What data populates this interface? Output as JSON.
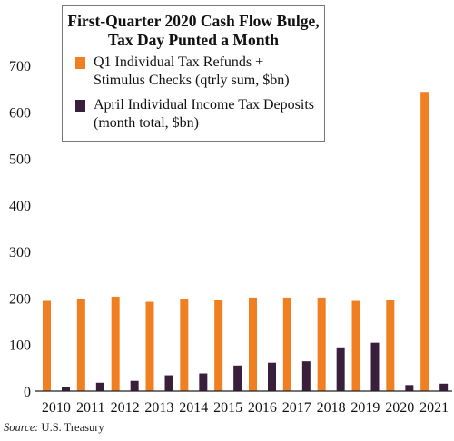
{
  "chart_data": {
    "type": "bar",
    "title_lines": [
      "First-Quarter 2020 Cash Flow Bulge,",
      "Tax Day Punted a Month"
    ],
    "categories": [
      "2010",
      "2011",
      "2012",
      "2013",
      "2014",
      "2015",
      "2016",
      "2017",
      "2018",
      "2019",
      "2020",
      "2021"
    ],
    "series": [
      {
        "name_lines": [
          "Q1 Individual Tax Refunds +",
          "Stimulus Checks (qtrly sum, $bn)"
        ],
        "color": "#f07f22",
        "values": [
          194,
          197,
          203,
          192,
          197,
          195,
          201,
          201,
          201,
          194,
          195,
          643
        ]
      },
      {
        "name_lines": [
          "April Individual Income Tax Deposits",
          "(month total, $bn)"
        ],
        "color": "#3a1f3c",
        "values": [
          9,
          18,
          22,
          34,
          38,
          55,
          61,
          64,
          94,
          104,
          13,
          16
        ]
      }
    ],
    "yticks": [
      0,
      100,
      200,
      300,
      400,
      500,
      600,
      700
    ],
    "ylim": [
      0,
      700
    ],
    "grid": false,
    "legend_position": "top-left"
  },
  "source": {
    "label": "Source:",
    "text": "U.S. Treasury"
  }
}
